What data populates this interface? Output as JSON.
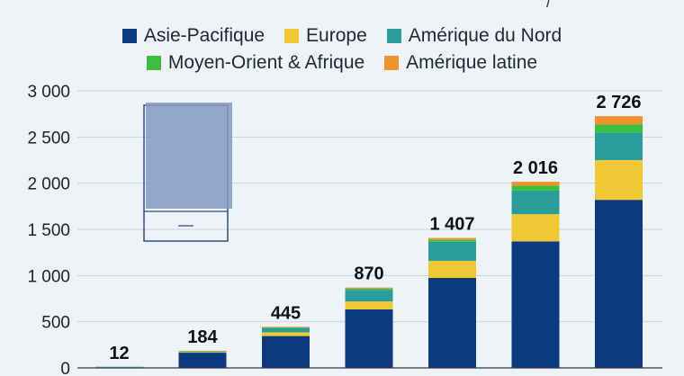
{
  "header_fragment": "/",
  "chart_data": {
    "type": "bar",
    "stacked": true,
    "categories": [
      "",
      "",
      "",
      "",
      "",
      "",
      ""
    ],
    "series": [
      {
        "name": "Asie-Pacifique",
        "color": "#0b3a7e",
        "values": [
          10,
          165,
          345,
          635,
          975,
          1370,
          1820
        ]
      },
      {
        "name": "Europe",
        "color": "#f0c836",
        "values": [
          1,
          8,
          40,
          85,
          185,
          295,
          430
        ]
      },
      {
        "name": "Amérique du Nord",
        "color": "#2a9d9a",
        "values": [
          1,
          8,
          45,
          125,
          205,
          255,
          300
        ]
      },
      {
        "name": "Moyen-Orient & Afrique",
        "color": "#3cbf3c",
        "values": [
          0,
          2,
          8,
          15,
          22,
          52,
          86
        ]
      },
      {
        "name": "Amérique latine",
        "color": "#f0922d",
        "values": [
          0,
          1,
          7,
          10,
          20,
          44,
          90
        ]
      }
    ],
    "totals": [
      "12",
      "184",
      "445",
      "870",
      "1 407",
      "2 016",
      "2 726"
    ],
    "yticks": [
      {
        "value": 0,
        "label": "0"
      },
      {
        "value": 500,
        "label": "500"
      },
      {
        "value": 1000,
        "label": "1 000"
      },
      {
        "value": 1500,
        "label": "1 500"
      },
      {
        "value": 2000,
        "label": "2 000"
      },
      {
        "value": 2500,
        "label": "2 500"
      },
      {
        "value": 3000,
        "label": "3 000"
      }
    ],
    "ylim": [
      0,
      3000
    ],
    "grid": true,
    "legend_position": "top",
    "overlay_icon": "document-overlay-icon"
  }
}
